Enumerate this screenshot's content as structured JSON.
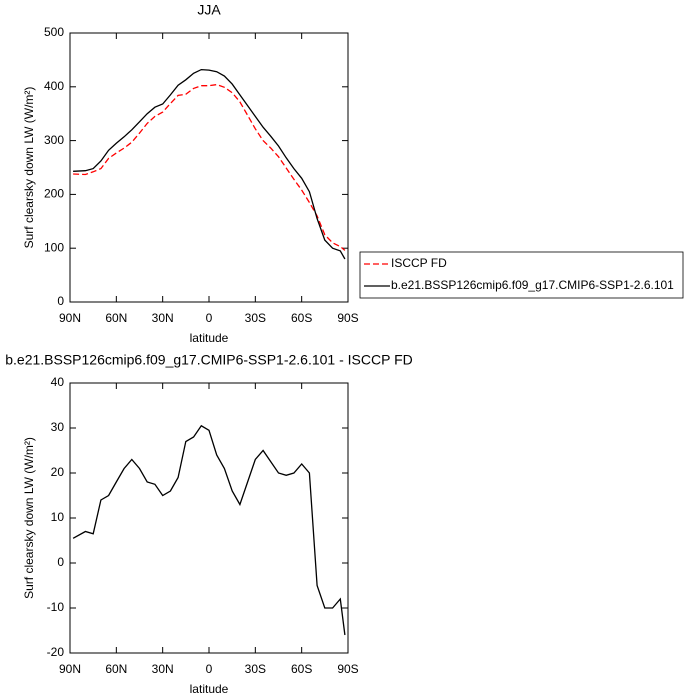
{
  "chart_data": [
    {
      "type": "line",
      "title": "JJA",
      "xlabel": "latitude",
      "ylabel": "Surf clearsky down LW (W/m²)",
      "x": [
        88,
        80,
        75,
        70,
        65,
        60,
        55,
        50,
        45,
        40,
        35,
        30,
        25,
        20,
        15,
        10,
        5,
        0,
        -5,
        -10,
        -15,
        -20,
        -25,
        -30,
        -35,
        -40,
        -45,
        -50,
        -55,
        -60,
        -65,
        -70,
        -75,
        -80,
        -85,
        -88
      ],
      "series": [
        {
          "name": "ISCCP FD",
          "color": "#ff0000",
          "line_style": "dashed",
          "values": [
            238,
            237,
            242,
            248,
            267,
            277,
            286,
            297,
            314,
            332,
            345,
            353,
            369,
            384,
            386,
            397,
            402,
            402,
            404,
            399,
            389,
            372,
            347,
            322,
            300,
            286,
            270,
            249,
            228,
            208,
            185,
            160,
            125,
            110,
            103,
            96
          ]
        },
        {
          "name": "b.e21.BSSP126cmip6.f09_g17.CMIP6-SSP1-2.6.101",
          "color": "#000000",
          "line_style": "solid",
          "values": [
            243,
            244,
            248,
            262,
            282,
            295,
            307,
            320,
            335,
            350,
            362,
            368,
            385,
            403,
            413,
            425,
            432,
            431,
            428,
            420,
            405,
            385,
            365,
            345,
            325,
            308,
            290,
            268,
            248,
            230,
            205,
            155,
            115,
            100,
            95,
            80
          ]
        }
      ],
      "xlim": [
        90,
        -90
      ],
      "xticks": [
        {
          "value": 90,
          "label": "90N"
        },
        {
          "value": 60,
          "label": "60N"
        },
        {
          "value": 30,
          "label": "30N"
        },
        0,
        {
          "value": -30,
          "label": "30S"
        },
        {
          "value": -60,
          "label": "60S"
        },
        {
          "value": -90,
          "label": "90S"
        }
      ],
      "ylim": [
        0,
        500
      ],
      "yticks": [
        0,
        100,
        200,
        300,
        400,
        500
      ],
      "legend": "right"
    },
    {
      "type": "line",
      "title": "b.e21.BSSP126cmip6.f09_g17.CMIP6-SSP1-2.6.101 - ISCCP FD",
      "xlabel": "latitude",
      "ylabel": "Surf clearsky down LW (W/m²)",
      "x": [
        88,
        80,
        75,
        70,
        65,
        60,
        55,
        50,
        45,
        40,
        35,
        30,
        25,
        20,
        15,
        10,
        5,
        0,
        -5,
        -10,
        -15,
        -20,
        -25,
        -30,
        -35,
        -40,
        -45,
        -50,
        -55,
        -60,
        -65,
        -70,
        -75,
        -80,
        -85,
        -88
      ],
      "series": [
        {
          "color": "#000000",
          "line_style": "solid",
          "values": [
            5.5,
            7,
            6.5,
            14,
            15,
            18,
            21,
            23,
            21,
            18,
            17.5,
            15,
            16,
            19,
            27,
            28,
            30.5,
            29.5,
            24,
            21,
            16,
            13,
            18,
            23,
            25,
            22.5,
            20,
            19.5,
            20,
            22,
            20,
            -5,
            -10,
            -10,
            -8,
            -16
          ]
        }
      ],
      "xlim": [
        90,
        -90
      ],
      "xticks": [
        {
          "value": 90,
          "label": "90N"
        },
        {
          "value": 60,
          "label": "60N"
        },
        {
          "value": 30,
          "label": "30N"
        },
        0,
        {
          "value": -30,
          "label": "30S"
        },
        {
          "value": -60,
          "label": "60S"
        },
        {
          "value": -90,
          "label": "90S"
        }
      ],
      "ylim": [
        -20,
        40
      ],
      "yticks": [
        -20,
        -10,
        0,
        10,
        20,
        30,
        40
      ]
    }
  ]
}
